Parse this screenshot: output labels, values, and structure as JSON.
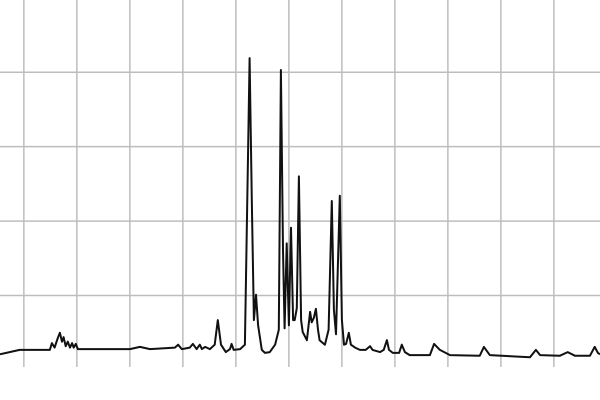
{
  "chart_data": {
    "type": "line",
    "title": "",
    "xlabel": "",
    "ylabel": "",
    "xlim": [
      -0.45,
      10.87
    ],
    "ylim": [
      0.04,
      4.97
    ],
    "grid": true,
    "x_gridlines": [
      0,
      1,
      2,
      3,
      4,
      5,
      6,
      7,
      8,
      9,
      10
    ],
    "y_gridlines": [
      1,
      2,
      3,
      4
    ],
    "colors": {
      "line": "#111111",
      "grid": "#bdbdbd",
      "background": "#ffffff"
    },
    "series": [
      {
        "x": [
          -0.45,
          -0.08,
          0.49,
          0.53,
          0.58,
          0.64,
          0.68,
          0.72,
          0.75,
          0.79,
          0.83,
          0.87,
          0.91,
          0.94,
          0.98,
          1.02,
          2.0,
          2.19,
          2.38,
          2.85,
          2.91,
          2.98,
          3.13,
          3.19,
          3.26,
          3.32,
          3.36,
          3.42,
          3.51,
          3.6,
          3.66,
          3.72,
          3.81,
          3.89,
          3.92,
          3.96,
          4.08,
          4.17,
          4.23,
          4.26,
          4.3,
          4.34,
          4.38,
          4.42,
          4.49,
          4.55,
          4.64,
          4.74,
          4.81,
          4.85,
          4.89,
          4.92,
          4.96,
          5.0,
          5.04,
          5.08,
          5.11,
          5.15,
          5.19,
          5.23,
          5.26,
          5.34,
          5.4,
          5.43,
          5.47,
          5.51,
          5.55,
          5.58,
          5.68,
          5.75,
          5.81,
          5.85,
          5.89,
          5.96,
          6.0,
          6.04,
          6.08,
          6.13,
          6.17,
          6.25,
          6.34,
          6.45,
          6.53,
          6.58,
          6.72,
          6.79,
          6.85,
          6.89,
          6.96,
          7.08,
          7.13,
          7.19,
          7.28,
          7.66,
          7.74,
          7.85,
          8.04,
          8.6,
          8.68,
          8.79,
          9.55,
          9.66,
          9.74,
          10.11,
          10.26,
          10.4,
          10.68,
          10.77,
          10.83,
          10.87
        ],
        "y": [
          0.21,
          0.27,
          0.27,
          0.36,
          0.3,
          0.43,
          0.5,
          0.38,
          0.44,
          0.32,
          0.38,
          0.3,
          0.36,
          0.3,
          0.35,
          0.28,
          0.28,
          0.31,
          0.28,
          0.3,
          0.34,
          0.28,
          0.3,
          0.35,
          0.28,
          0.34,
          0.28,
          0.31,
          0.28,
          0.34,
          0.67,
          0.34,
          0.24,
          0.28,
          0.35,
          0.27,
          0.28,
          0.34,
          2.95,
          4.19,
          2.28,
          0.67,
          1.01,
          0.6,
          0.27,
          0.23,
          0.24,
          0.34,
          0.54,
          4.03,
          1.61,
          0.56,
          1.7,
          0.6,
          1.91,
          0.67,
          0.67,
          0.83,
          2.6,
          0.67,
          0.51,
          0.4,
          0.78,
          0.64,
          0.7,
          0.82,
          0.54,
          0.4,
          0.34,
          0.54,
          2.27,
          0.81,
          0.48,
          2.34,
          0.67,
          0.34,
          0.35,
          0.5,
          0.34,
          0.3,
          0.27,
          0.27,
          0.32,
          0.27,
          0.24,
          0.27,
          0.4,
          0.27,
          0.23,
          0.23,
          0.34,
          0.24,
          0.2,
          0.2,
          0.35,
          0.27,
          0.2,
          0.19,
          0.31,
          0.2,
          0.17,
          0.27,
          0.2,
          0.19,
          0.24,
          0.19,
          0.19,
          0.31,
          0.23,
          0.21
        ]
      }
    ]
  }
}
